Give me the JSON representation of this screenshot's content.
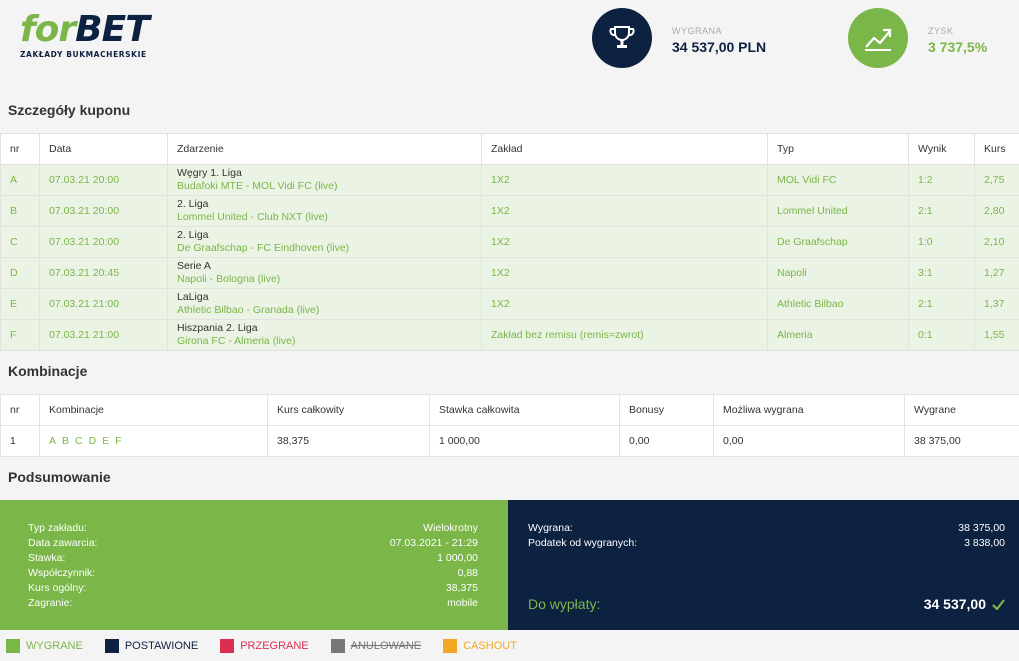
{
  "brand": {
    "logo_for": "for",
    "logo_bet": "BET",
    "tagline": "ZAKŁADY BUKMACHERSKIE"
  },
  "stats": {
    "wygrana": {
      "label": "WYGRANA",
      "value": "34 537,00 PLN",
      "icon": "trophy-icon",
      "color": "#0d2140"
    },
    "zysk": {
      "label": "ZYSK",
      "value": "3 737,5%",
      "icon": "trend-up-icon",
      "color": "#7ab648"
    }
  },
  "coupon": {
    "title": "Szczegóły kuponu",
    "headers": [
      "nr",
      "Data",
      "Zdarzenie",
      "Zakład",
      "Typ",
      "Wynik",
      "Kurs"
    ],
    "rows": [
      {
        "nr": "A",
        "date": "07.03.21 20:00",
        "league": "Węgry 1. Liga",
        "match": "Budafoki MTE - MOL Vidi FC (live)",
        "bet": "1X2",
        "type": "MOL Vidi FC",
        "result": "1:2",
        "odds": "2,75"
      },
      {
        "nr": "B",
        "date": "07.03.21 20:00",
        "league": "2. Liga",
        "match": "Lommel United - Club NXT (live)",
        "bet": "1X2",
        "type": "Lommel United",
        "result": "2:1",
        "odds": "2,80"
      },
      {
        "nr": "C",
        "date": "07.03.21 20:00",
        "league": "2. Liga",
        "match": "De Graafschap - FC Eindhoven (live)",
        "bet": "1X2",
        "type": "De Graafschap",
        "result": "1:0",
        "odds": "2,10"
      },
      {
        "nr": "D",
        "date": "07.03.21 20:45",
        "league": "Serie A",
        "match": "Napoli - Bologna (live)",
        "bet": "1X2",
        "type": "Napoli",
        "result": "3:1",
        "odds": "1,27"
      },
      {
        "nr": "E",
        "date": "07.03.21 21:00",
        "league": "LaLiga",
        "match": "Athletic Bilbao - Granada (live)",
        "bet": "1X2",
        "type": "Athletic Bilbao",
        "result": "2:1",
        "odds": "1,37"
      },
      {
        "nr": "F",
        "date": "07.03.21 21:00",
        "league": "Hiszpania 2. Liga",
        "match": "Girona FC - Almeria (live)",
        "bet": "Zakład bez remisu (remis=zwrot)",
        "type": "Almeria",
        "result": "0:1",
        "odds": "1,55"
      }
    ]
  },
  "combinations": {
    "title": "Kombinacje",
    "headers": [
      "nr",
      "Kombinacje",
      "Kurs całkowity",
      "Stawka całkowita",
      "Bonusy",
      "Możliwa wygrana",
      "Wygrane"
    ],
    "rows": [
      {
        "nr": "1",
        "letters": [
          "A",
          "B",
          "C",
          "D",
          "E",
          "F"
        ],
        "total_odds": "38,375",
        "total_stake": "1 000,00",
        "bonus": "0,00",
        "possible_win": "0,00",
        "win": "38 375,00"
      }
    ]
  },
  "summary": {
    "title": "Podsumowanie",
    "left": [
      {
        "label": "Typ zakładu:",
        "value": "Wielokrotny"
      },
      {
        "label": "Data zawarcia:",
        "value": "07.03.2021 - 21:29"
      },
      {
        "label": "Stawka:",
        "value": "1 000,00"
      },
      {
        "label": "Współczynnik:",
        "value": "0,88"
      },
      {
        "label": "Kurs ogólny:",
        "value": "38,375"
      },
      {
        "label": "Zagranie:",
        "value": "mobile"
      }
    ],
    "right": [
      {
        "label": "Wygrana:",
        "value": "38 375,00"
      },
      {
        "label": "Podatek od wygranych:",
        "value": "3 838,00"
      }
    ],
    "payout_label": "Do wypłaty:",
    "payout_value": "34 537,00",
    "payout_icon": "check-icon"
  },
  "legend": [
    {
      "label": "WYGRANE",
      "color": "#7ab648",
      "text_color": "#7ab648"
    },
    {
      "label": "POSTAWIONE",
      "color": "#0d2140",
      "text_color": "#0d2140"
    },
    {
      "label": "PRZEGRANE",
      "color": "#d9304f",
      "text_color": "#d9304f"
    },
    {
      "label": "ANULOWANE",
      "color": "#777777",
      "text_color": "#777777"
    },
    {
      "label": "CASHOUT",
      "color": "#f5a623",
      "text_color": "#f5a623"
    }
  ]
}
